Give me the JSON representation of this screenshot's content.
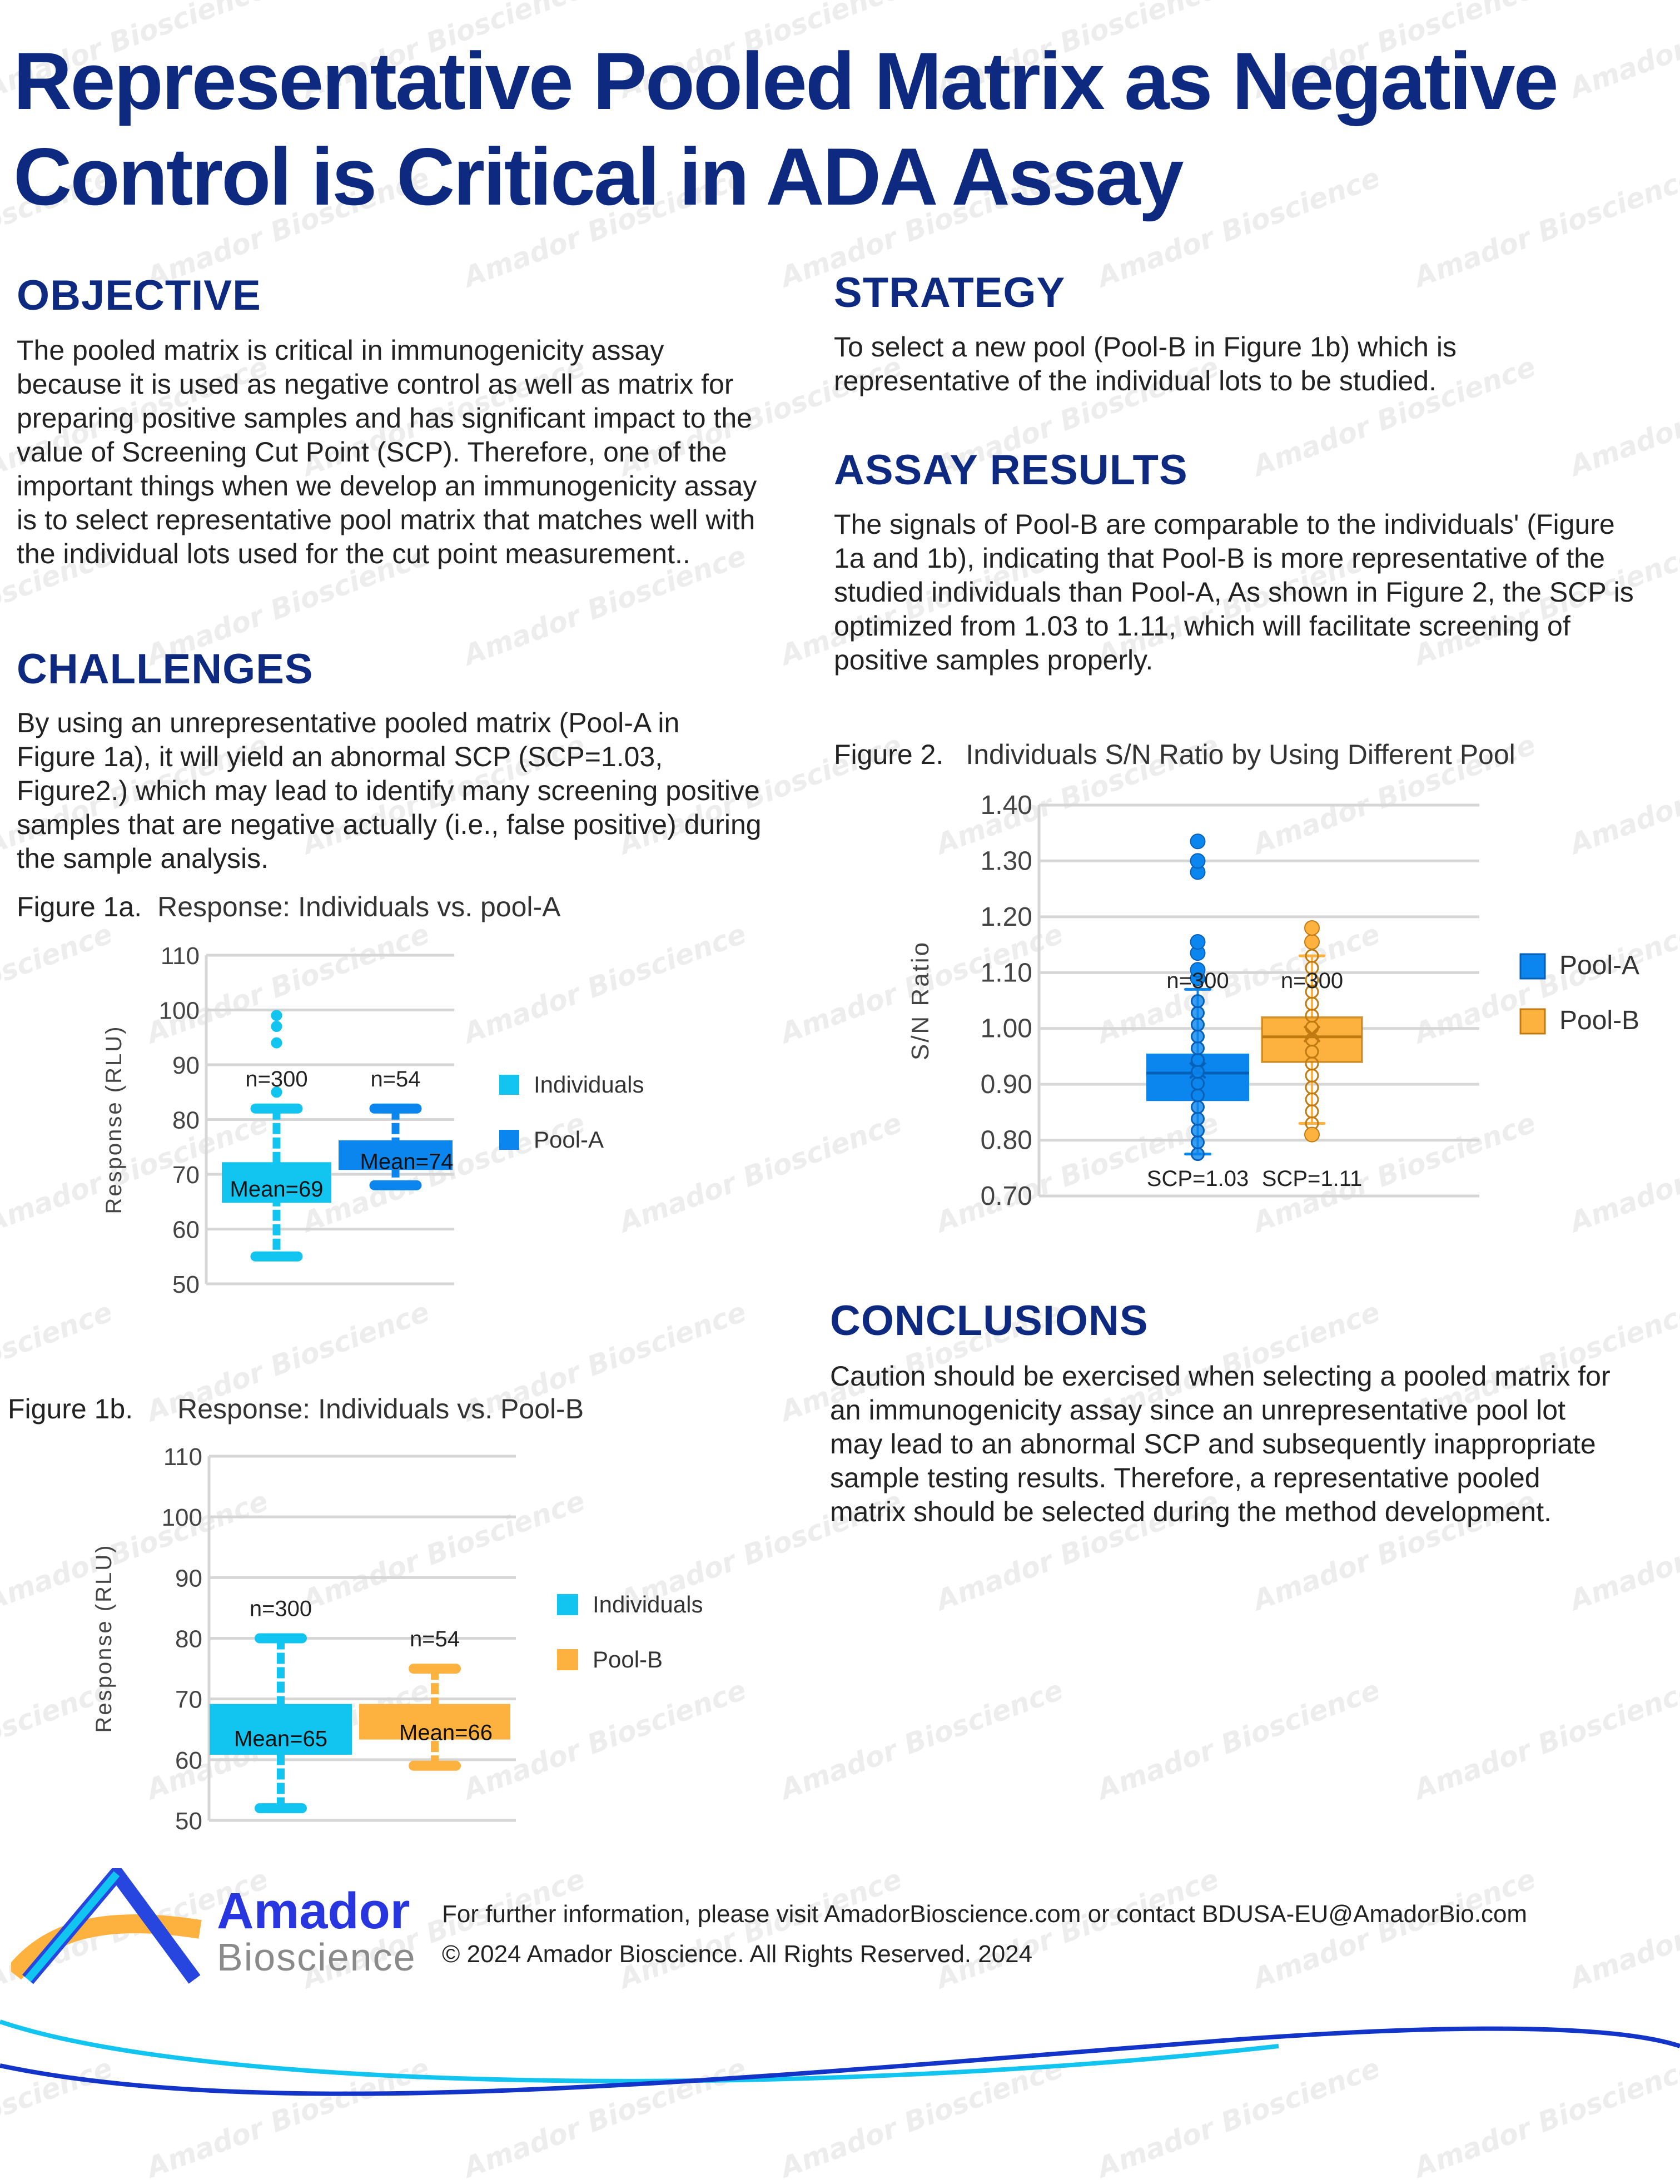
{
  "title": "Representative Pooled Matrix as Negative Control is Critical in ADA Assay",
  "watermark": "Amador Bioscience",
  "colors": {
    "title": "#0d2a80",
    "individuals": "#12c4f0",
    "pool_a": "#0a86ee",
    "pool_b": "#fdb240",
    "grid": "#d6d6d6"
  },
  "objective": {
    "heading": "OBJECTIVE",
    "text": "The pooled matrix is critical in immunogenicity assay because it is used as negative control as well as matrix for preparing positive samples and has significant impact to the value of Screening Cut Point (SCP). Therefore, one of the important things when we develop an immunogenicity assay is to select representative pool matrix that matches well with the individual lots used for the cut point measurement.."
  },
  "challenges": {
    "heading": "CHALLENGES",
    "text": "By using an unrepresentative pooled matrix (Pool-A in Figure 1a), it will yield an abnormal SCP (SCP=1.03, Figure2.) which may lead to identify many screening positive samples that are negative actually (i.e., false positive) during the sample analysis."
  },
  "strategy": {
    "heading": "STRATEGY",
    "text": "To select a new pool  (Pool-B in Figure 1b) which is representative of the individual lots to be studied."
  },
  "assay_results": {
    "heading": "ASSAY RESULTS",
    "text": "The signals of Pool-B are comparable to the individuals' (Figure 1a and 1b), indicating that Pool-B is more representative of the studied individuals than Pool-A, As shown in Figure 2, the SCP is optimized from 1.03 to 1.11, which will facilitate screening of positive samples properly."
  },
  "conclusions": {
    "heading": "CONCLUSIONS",
    "text": "Caution should be exercised when selecting a pooled matrix for an immunogenicity assay since an unrepresentative pool lot may lead to an abnormal SCP and subsequently inappropriate sample testing results. Therefore, a representative pooled matrix should be selected during the method development."
  },
  "footer": {
    "brand_line1": "Amador",
    "brand_line2": "Bioscience",
    "contact": "For further information, please visit AmadorBioscience.com or contact BDUSA-EU@AmadorBio.com",
    "copyright": "© 2024 Amador Bioscience. All Rights Reserved. 2024"
  },
  "chart_data": [
    {
      "type": "box",
      "figure_label": "Figure 1a.",
      "title": "Response: Individuals vs. pool-A",
      "ylabel": "Response (RLU)",
      "ylim": [
        50,
        110
      ],
      "yticks": [
        "50",
        "60",
        "70",
        "80",
        "90",
        "100",
        "110"
      ],
      "grid": true,
      "legend": "right",
      "series": [
        {
          "name": "Individuals",
          "color": "#12c4f0",
          "min": 55,
          "q1": 65,
          "q3": 72,
          "max": 82,
          "mean": 69,
          "outliers": [
            85,
            94,
            97,
            99
          ],
          "n_label": "n=300",
          "mean_label": "Mean=69"
        },
        {
          "name": "Pool-A",
          "color": "#0a86ee",
          "min": 68,
          "q1": 71,
          "q3": 76,
          "max": 82,
          "mean": 74,
          "outliers": [],
          "n_label": "n=54",
          "mean_label": "Mean=74"
        }
      ]
    },
    {
      "type": "box",
      "figure_label": "Figure 1b.",
      "title": "Response: Individuals vs. Pool-B",
      "ylabel": "Response (RLU)",
      "ylim": [
        50,
        110
      ],
      "yticks": [
        "50",
        "60",
        "70",
        "80",
        "90",
        "100",
        "110"
      ],
      "grid": true,
      "legend": "right",
      "series": [
        {
          "name": "Individuals",
          "color": "#12c4f0",
          "min": 52,
          "q1": 61,
          "q3": 69,
          "max": 80,
          "mean": 65,
          "outliers": [],
          "n_label": "n=300",
          "mean_label": "Mean=65"
        },
        {
          "name": "Pool-B",
          "color": "#fdb240",
          "min": 59,
          "q1": 63.5,
          "q3": 69,
          "max": 75,
          "mean": 66,
          "outliers": [],
          "n_label": "n=54",
          "mean_label": "Mean=66"
        }
      ]
    },
    {
      "type": "box",
      "figure_label": "Figure 2.",
      "title": "Individuals S/N Ratio by Using Different Pool",
      "ylabel": "S/N Ratio",
      "ylim": [
        0.7,
        1.4
      ],
      "yticks": [
        "0.70",
        "0.80",
        "0.90",
        "1.00",
        "1.10",
        "1.20",
        "1.30",
        "1.40"
      ],
      "grid": true,
      "legend": "right",
      "series": [
        {
          "name": "Pool-A",
          "color": "#0a86ee",
          "min": 0.775,
          "q1": 0.87,
          "median": 0.92,
          "q3": 0.955,
          "max": 1.07,
          "mean": 0.925,
          "outliers": [
            1.09,
            1.105,
            1.135,
            1.155,
            1.28,
            1.3,
            1.335
          ],
          "n_label": "n=300",
          "scp_label": "SCP=1.03"
        },
        {
          "name": "Pool-B",
          "color": "#fdb240",
          "min": 0.83,
          "q1": 0.94,
          "median": 0.985,
          "q3": 1.02,
          "max": 1.13,
          "mean": 0.99,
          "outliers": [
            0.81,
            1.155,
            1.18
          ],
          "n_label": "n=300",
          "scp_label": "SCP=1.11"
        }
      ]
    }
  ]
}
